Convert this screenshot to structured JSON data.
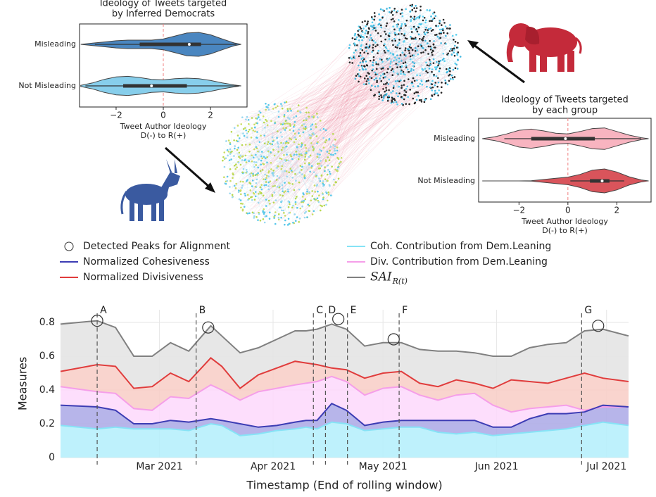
{
  "chart_data": [
    {
      "type": "violin",
      "title": [
        "Ideology of Tweets targeted",
        "by Inferred Democrats"
      ],
      "xlabel": [
        "Tweet Author Ideology",
        "D(-) to R(+)"
      ],
      "xlim": [
        -3.55,
        3.55
      ],
      "xticks": [
        {
          "value": -2,
          "label": "−2"
        },
        0,
        2
      ],
      "reference_line": 0,
      "kde_x": [
        -3.5,
        -3,
        -2.5,
        -2,
        -1.5,
        -1,
        -0.5,
        0,
        0.5,
        1,
        1.5,
        2,
        2.5,
        3,
        3.3
      ],
      "categories": [
        "Misleading",
        "Not Misleading"
      ],
      "violins": [
        {
          "color": "#4a86c0",
          "density": [
            0,
            0.1,
            0.2,
            0.3,
            0.35,
            0.35,
            0.35,
            0.45,
            0.7,
            0.95,
            1.0,
            0.8,
            0.45,
            0.12,
            0
          ],
          "min": -2.9,
          "q1": -1.0,
          "median": 1.1,
          "q3": 1.6,
          "max": 3.1
        },
        {
          "color": "#87ceeb",
          "density": [
            0.05,
            0.25,
            0.55,
            0.75,
            0.8,
            0.7,
            0.55,
            0.5,
            0.6,
            0.65,
            0.6,
            0.45,
            0.25,
            0.08,
            0
          ],
          "min": -3.3,
          "q1": -1.7,
          "median": -0.5,
          "q3": 1.0,
          "max": 3.2
        }
      ]
    },
    {
      "type": "violin",
      "title": [
        "Ideology of Tweets targeted",
        "by each group"
      ],
      "xlabel": [
        "Tweet Author Ideology",
        "D(-) to R(+)"
      ],
      "xlim": [
        -3.65,
        3.4
      ],
      "xticks": [
        {
          "value": -2,
          "label": "−2"
        },
        0,
        2
      ],
      "reference_line": 0,
      "kde_x": [
        -3.5,
        -3,
        -2.5,
        -2,
        -1.5,
        -1,
        -0.5,
        0,
        0.5,
        1,
        1.5,
        2,
        2.5,
        3,
        3.3
      ],
      "categories": [
        "Misleading",
        "Not Misleading"
      ],
      "violins": [
        {
          "color": "#f8b4c0",
          "density": [
            0,
            0.15,
            0.4,
            0.7,
            0.8,
            0.65,
            0.45,
            0.4,
            0.6,
            0.85,
            0.9,
            0.6,
            0.3,
            0.08,
            0
          ],
          "min": -2.6,
          "q1": -1.5,
          "median": -0.1,
          "q3": 1.1,
          "max": 3.0
        },
        {
          "color": "#d9545b",
          "density": [
            0,
            0,
            0,
            0,
            0.02,
            0.12,
            0.22,
            0.32,
            0.55,
            0.9,
            1.0,
            0.75,
            0.35,
            0.08,
            0
          ],
          "min": 0.1,
          "q1": 0.9,
          "median": 1.4,
          "q3": 1.7,
          "max": 2.3
        }
      ]
    },
    {
      "type": "area",
      "xlabel": "Timestamp (End of rolling window)",
      "ylabel": "Measures",
      "x": [
        33,
        43,
        48,
        53,
        58,
        63,
        68,
        74,
        77,
        82,
        87,
        92,
        97,
        100,
        103,
        107,
        111,
        116,
        121,
        126,
        131,
        136,
        141,
        146,
        151,
        156,
        161,
        166,
        171,
        176,
        181,
        188
      ],
      "xlim": [
        33,
        188
      ],
      "xticks": [
        {
          "value": 60,
          "label": "Mar 2021"
        },
        {
          "value": 91,
          "label": "Apr 2021"
        },
        {
          "value": 121,
          "label": "May 2021"
        },
        {
          "value": 152,
          "label": "Jun 2021"
        },
        {
          "value": 182,
          "label": "Jul 2021"
        }
      ],
      "ylim": [
        0,
        0.875
      ],
      "yticks": [
        0,
        0.2,
        0.4,
        0.6,
        0.8
      ],
      "grid": true,
      "legend": "top",
      "series": [
        {
          "name": "SAI",
          "subscript": "R(t)",
          "color": "#808080",
          "fill_color": "#e3e3e3",
          "values": [
            0.79,
            0.81,
            0.77,
            0.6,
            0.6,
            0.68,
            0.63,
            0.78,
            0.72,
            0.62,
            0.65,
            0.7,
            0.75,
            0.75,
            0.76,
            0.79,
            0.76,
            0.66,
            0.68,
            0.68,
            0.64,
            0.63,
            0.63,
            0.62,
            0.6,
            0.6,
            0.65,
            0.67,
            0.68,
            0.75,
            0.76,
            0.72
          ]
        },
        {
          "name": "Normalized Divisiveness",
          "color": "#e03c3c",
          "fill_color": "#f8cdc6",
          "values": [
            0.51,
            0.55,
            0.54,
            0.41,
            0.42,
            0.5,
            0.45,
            0.59,
            0.54,
            0.41,
            0.49,
            0.53,
            0.57,
            0.56,
            0.55,
            0.53,
            0.52,
            0.47,
            0.5,
            0.51,
            0.44,
            0.42,
            0.46,
            0.44,
            0.41,
            0.46,
            0.45,
            0.44,
            0.47,
            0.5,
            0.47,
            0.45
          ]
        },
        {
          "name": "Div. Contribution from Dem.Leaning",
          "color": "#f59ee9",
          "fill_color": "#fdd8fc",
          "values": [
            0.42,
            0.39,
            0.38,
            0.29,
            0.28,
            0.36,
            0.35,
            0.43,
            0.4,
            0.34,
            0.39,
            0.41,
            0.43,
            0.44,
            0.45,
            0.48,
            0.45,
            0.37,
            0.41,
            0.42,
            0.37,
            0.34,
            0.37,
            0.38,
            0.31,
            0.27,
            0.29,
            0.3,
            0.31,
            0.28,
            0.3,
            0.3
          ]
        },
        {
          "name": "Normalized Cohesiveness",
          "color": "#3c3cb4",
          "fill_color": "#aaa8e6",
          "values": [
            0.31,
            0.3,
            0.28,
            0.2,
            0.2,
            0.22,
            0.21,
            0.23,
            0.22,
            0.2,
            0.18,
            0.19,
            0.21,
            0.22,
            0.22,
            0.32,
            0.28,
            0.19,
            0.21,
            0.22,
            0.22,
            0.22,
            0.22,
            0.22,
            0.18,
            0.18,
            0.23,
            0.26,
            0.26,
            0.27,
            0.31,
            0.3
          ]
        },
        {
          "name": "Coh. Contribution from Dem.Leaning",
          "color": "#86e3f6",
          "fill_color": "#b3effb",
          "values": [
            0.19,
            0.17,
            0.18,
            0.17,
            0.17,
            0.17,
            0.16,
            0.2,
            0.19,
            0.13,
            0.14,
            0.16,
            0.17,
            0.18,
            0.17,
            0.21,
            0.2,
            0.16,
            0.17,
            0.18,
            0.18,
            0.15,
            0.14,
            0.15,
            0.13,
            0.14,
            0.15,
            0.16,
            0.17,
            0.19,
            0.21,
            0.19
          ]
        }
      ],
      "peaks": {
        "name": "Detected Peaks for Alignment",
        "x": [
          43,
          73.3,
          108.8,
          123.9,
          179.7
        ],
        "y": [
          0.81,
          0.77,
          0.82,
          0.7,
          0.78
        ]
      },
      "events": {
        "labels": [
          "A",
          "B",
          "C",
          "D",
          "E",
          "F",
          "G"
        ],
        "x": [
          43,
          70,
          102,
          105.3,
          111.3,
          125.4,
          175.2
        ]
      }
    }
  ]
}
